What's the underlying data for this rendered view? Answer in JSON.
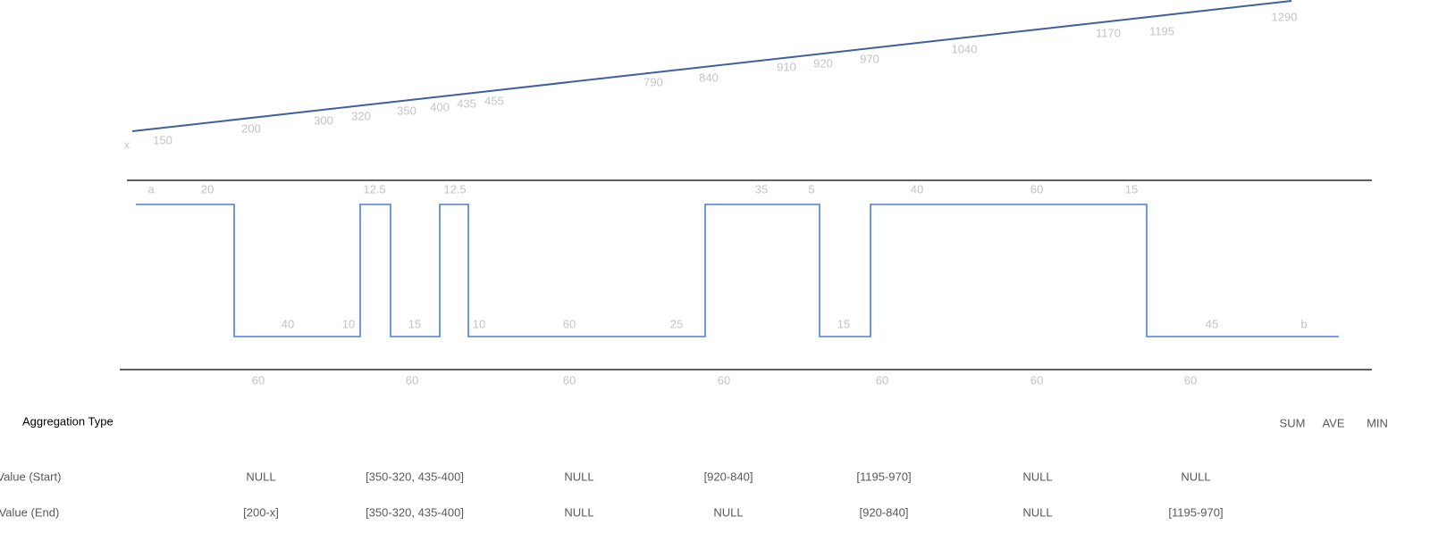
{
  "top_line": {
    "start_label": "x",
    "labels": [
      "150",
      "200",
      "300",
      "320",
      "350",
      "400",
      "435",
      "455",
      "790",
      "840",
      "910",
      "920",
      "970",
      "1040",
      "1170",
      "1195",
      "1290"
    ]
  },
  "step_line": {
    "top_labels": [
      "a",
      "20",
      "12.5",
      "12.5",
      "35",
      "5",
      "40",
      "60",
      "15"
    ],
    "bottom_labels": [
      "40",
      "10",
      "15",
      "10",
      "60",
      "25",
      "15",
      "45",
      "b"
    ]
  },
  "axis_labels": [
    "60",
    "60",
    "60",
    "60",
    "60",
    "60",
    "60"
  ],
  "table": {
    "header": "Aggregation Type",
    "aggregations": [
      "SUM",
      "AVE",
      "MIN"
    ],
    "rows": [
      {
        "label": "Event Value (Start)",
        "cells": [
          "NULL",
          "[350-320, 435-400]",
          "NULL",
          "[920-840]",
          "[1195-970]",
          "NULL",
          "NULL"
        ]
      },
      {
        "label": "Event Value (End)",
        "cells": [
          "[200-x]",
          "[350-320, 435-400]",
          "NULL",
          "NULL",
          "[920-840]",
          "NULL",
          "[1195-970]"
        ]
      }
    ]
  }
}
